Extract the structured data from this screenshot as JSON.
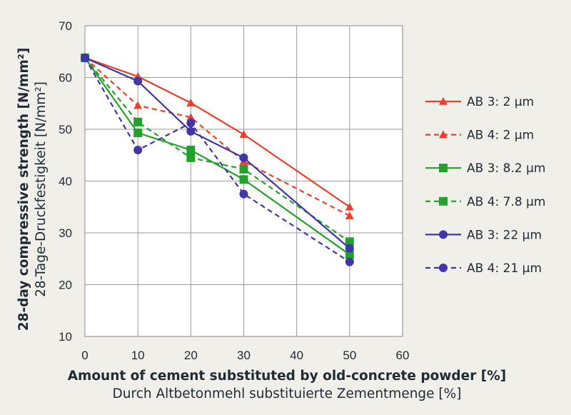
{
  "chart_data": {
    "type": "line",
    "title": "",
    "xlabel": "Amount of cement substituted by old-concrete powder [%]",
    "xlabel_secondary": "Durch Altbetonmehl substituierte Zementmenge [%]",
    "ylabel": "28-day compressive strength [N/mm²]",
    "ylabel_secondary": "28-Tage-Druckfestigkeit [N/mm²]",
    "xlim": [
      0,
      60
    ],
    "ylim": [
      10,
      70
    ],
    "xticks": [
      0,
      10,
      20,
      30,
      40,
      50,
      60
    ],
    "yticks": [
      10,
      20,
      30,
      40,
      50,
      60,
      70
    ],
    "xtick_labels": [
      "0",
      "10",
      "20",
      "30",
      "40",
      "50",
      "60"
    ],
    "ytick_labels": [
      "10",
      "20",
      "30",
      "40",
      "50",
      "60",
      "70"
    ],
    "grid": true,
    "legend_position": "right",
    "x": [
      0,
      10,
      20,
      30,
      50
    ],
    "series": [
      {
        "name": "AB 3: 2 µm",
        "values": [
          63.8,
          60.2,
          55.1,
          49.0,
          35.0
        ],
        "color": "#e8402a",
        "dash": false,
        "marker": "triangle"
      },
      {
        "name": "AB 4: 2 µm",
        "values": [
          63.8,
          54.6,
          52.3,
          43.8,
          33.3
        ],
        "color": "#e8402a",
        "dash": true,
        "marker": "triangle"
      },
      {
        "name": "AB 3: 8.2 µm",
        "values": [
          63.8,
          49.3,
          46.0,
          40.3,
          25.8
        ],
        "color": "#24a02c",
        "dash": false,
        "marker": "square"
      },
      {
        "name": "AB 4: 7.8 µm",
        "values": [
          63.8,
          51.4,
          44.5,
          42.3,
          28.3
        ],
        "color": "#24a02c",
        "dash": true,
        "marker": "square"
      },
      {
        "name": "AB 3: 22 µm",
        "values": [
          63.8,
          59.3,
          49.6,
          44.5,
          27.0
        ],
        "color": "#3f36a8",
        "dash": false,
        "marker": "circle"
      },
      {
        "name": "AB 4: 21 µm",
        "values": [
          63.8,
          46.0,
          51.2,
          37.5,
          24.4
        ],
        "color": "#3f36a8",
        "dash": true,
        "marker": "circle"
      }
    ]
  }
}
